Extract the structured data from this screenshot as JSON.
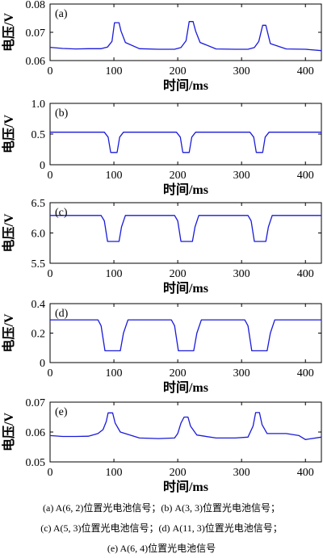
{
  "chart_data": [
    {
      "type": "line",
      "panel_label": "(a)",
      "xlabel": "时间/ms",
      "ylabel": "电压/V",
      "xlim": [
        0,
        425
      ],
      "ylim": [
        0.06,
        0.08
      ],
      "xticks": [
        "0",
        "100",
        "200",
        "300",
        "400"
      ],
      "yticks": [
        "0.06",
        "0.07",
        "0.08"
      ],
      "color": "#1a1adb",
      "series": [
        {
          "x": [
            0,
            20,
            40,
            60,
            80,
            90,
            97,
            101,
            108,
            111,
            118,
            140,
            170,
            195,
            205,
            213,
            218,
            224,
            228,
            235,
            260,
            290,
            310,
            320,
            327,
            333,
            338,
            345,
            370,
            400,
            425
          ],
          "y": [
            0.0647,
            0.0643,
            0.0641,
            0.0642,
            0.0642,
            0.0648,
            0.0668,
            0.0734,
            0.0734,
            0.0705,
            0.0664,
            0.0642,
            0.064,
            0.064,
            0.0646,
            0.067,
            0.0738,
            0.0738,
            0.0704,
            0.0664,
            0.0641,
            0.064,
            0.064,
            0.0646,
            0.0668,
            0.0725,
            0.0725,
            0.066,
            0.0641,
            0.064,
            0.0635
          ]
        }
      ]
    },
    {
      "type": "line",
      "panel_label": "(b)",
      "xlabel": "时间/ms",
      "ylabel": "电压/V",
      "xlim": [
        0,
        425
      ],
      "ylim": [
        0,
        1.0
      ],
      "xticks": [
        "0",
        "100",
        "200",
        "300",
        "400"
      ],
      "yticks": [
        "0",
        "0.5",
        "1.0"
      ],
      "color": "#1a1adb",
      "series": [
        {
          "x": [
            0,
            85,
            91,
            95,
            105,
            109,
            115,
            198,
            204,
            208,
            218,
            222,
            228,
            313,
            319,
            323,
            333,
            337,
            343,
            425
          ],
          "y": [
            0.53,
            0.53,
            0.45,
            0.2,
            0.2,
            0.45,
            0.53,
            0.53,
            0.45,
            0.2,
            0.2,
            0.45,
            0.53,
            0.53,
            0.45,
            0.2,
            0.2,
            0.45,
            0.53,
            0.53
          ]
        }
      ]
    },
    {
      "type": "line",
      "panel_label": "(c)",
      "xlabel": "时间/ms",
      "ylabel": "电压/V",
      "xlim": [
        0,
        425
      ],
      "ylim": [
        5.5,
        6.5
      ],
      "xticks": [
        "0",
        "100",
        "200",
        "300",
        "400"
      ],
      "yticks": [
        "5.5",
        "6.0",
        "6.5"
      ],
      "color": "#1a1adb",
      "series": [
        {
          "x": [
            0,
            80,
            85,
            90,
            108,
            112,
            118,
            195,
            200,
            205,
            223,
            227,
            233,
            310,
            315,
            320,
            338,
            342,
            348,
            425
          ],
          "y": [
            6.29,
            6.29,
            6.2,
            5.86,
            5.86,
            6.1,
            6.29,
            6.29,
            6.2,
            5.86,
            5.86,
            6.1,
            6.29,
            6.29,
            6.2,
            5.86,
            5.86,
            6.1,
            6.29,
            6.29
          ]
        }
      ]
    },
    {
      "type": "line",
      "panel_label": "(d)",
      "xlabel": "时间/ms",
      "ylabel": "电压/V",
      "xlim": [
        0,
        425
      ],
      "ylim": [
        0,
        0.4
      ],
      "xticks": [
        "0",
        "100",
        "200",
        "300",
        "400"
      ],
      "yticks": [
        "0",
        "0.2",
        "0.4"
      ],
      "color": "#1a1adb",
      "series": [
        {
          "x": [
            0,
            75,
            80,
            86,
            110,
            115,
            122,
            190,
            195,
            201,
            225,
            230,
            237,
            305,
            310,
            316,
            340,
            345,
            352,
            425
          ],
          "y": [
            0.29,
            0.29,
            0.25,
            0.08,
            0.08,
            0.2,
            0.29,
            0.29,
            0.25,
            0.08,
            0.08,
            0.2,
            0.29,
            0.29,
            0.25,
            0.08,
            0.08,
            0.2,
            0.29,
            0.29
          ]
        }
      ]
    },
    {
      "type": "line",
      "panel_label": "(e)",
      "xlabel": "时间/ms",
      "ylabel": "电压/V",
      "xlim": [
        0,
        425
      ],
      "ylim": [
        0.05,
        0.07
      ],
      "xticks": [
        "0",
        "100",
        "200",
        "300",
        "400"
      ],
      "yticks": [
        "0.05",
        "0.06",
        "0.07"
      ],
      "color": "#1a1adb",
      "series": [
        {
          "x": [
            0,
            20,
            40,
            60,
            75,
            83,
            88,
            91,
            98,
            102,
            110,
            140,
            170,
            195,
            200,
            205,
            210,
            216,
            220,
            230,
            260,
            290,
            310,
            318,
            322,
            328,
            332,
            340,
            370,
            390,
            400,
            425
          ],
          "y": [
            0.0588,
            0.0585,
            0.0585,
            0.0586,
            0.0595,
            0.0608,
            0.0635,
            0.0664,
            0.0664,
            0.063,
            0.06,
            0.058,
            0.0578,
            0.058,
            0.0595,
            0.063,
            0.065,
            0.065,
            0.062,
            0.059,
            0.058,
            0.058,
            0.0583,
            0.062,
            0.0665,
            0.0665,
            0.0625,
            0.0595,
            0.0595,
            0.0588,
            0.0575,
            0.0583
          ]
        }
      ]
    }
  ],
  "caption": [
    "(a) A(6, 2)位置光电池信号；(b) A(3, 3)位置光电池信号；",
    "(c) A(5, 3)位置光电池信号；(d) A(11, 3)位置光电池信号；",
    "(e) A(6, 4)位置光电池信号"
  ]
}
